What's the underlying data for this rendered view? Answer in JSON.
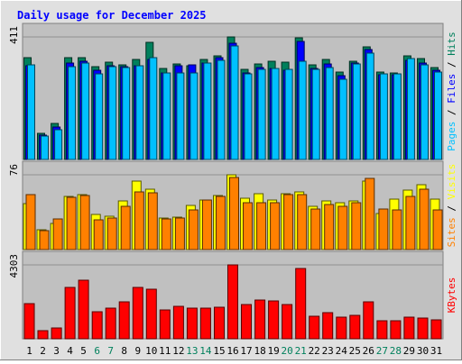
{
  "chart_data": {
    "type": "bar",
    "title": "Daily usage for December 2025",
    "days": [
      "1",
      "2",
      "3",
      "4",
      "5",
      "6",
      "7",
      "8",
      "9",
      "10",
      "11",
      "12",
      "13",
      "14",
      "15",
      "16",
      "17",
      "18",
      "19",
      "20",
      "21",
      "22",
      "23",
      "24",
      "25",
      "26",
      "27",
      "28",
      "29",
      "30",
      "31"
    ],
    "weekend_days": [
      "6",
      "7",
      "13",
      "14",
      "20",
      "21",
      "27",
      "28"
    ],
    "panels": [
      {
        "id": "hits-files-pages",
        "scale_max_label": "411",
        "ymax": 411,
        "label_parts": [
          "Pages",
          "Files",
          "Hits"
        ],
        "series": [
          {
            "name": "Hits",
            "values": [
              341,
              87,
              121,
              342,
              341,
              310,
              325,
              318,
              334,
              393,
              305,
              320,
              314,
              335,
              349,
              411,
              302,
              320,
              330,
              325,
              409,
              316,
              335,
              292,
              329,
              379,
              294,
              290,
              348,
              338,
              307
            ]
          },
          {
            "name": "Files",
            "values": [
              315,
              83,
              108,
              324,
              330,
              300,
              315,
              312,
              315,
              334,
              290,
              315,
              318,
              322,
              342,
              390,
              290,
              307,
              305,
              300,
              397,
              305,
              320,
              282,
              322,
              368,
              284,
              285,
              331,
              322,
              298
            ]
          },
          {
            "name": "Pages",
            "values": [
              318,
              79,
              99,
              311,
              324,
              288,
              311,
              309,
              313,
              341,
              289,
              290,
              291,
              324,
              333,
              380,
              288,
              303,
              306,
              301,
              329,
              302,
              307,
              270,
              320,
              358,
              286,
              287,
              339,
              317,
              294
            ]
          }
        ]
      },
      {
        "id": "visits-sites",
        "scale_max_label": "76",
        "ymax": 76,
        "label_parts": [
          "Sites",
          "Visits"
        ],
        "series": [
          {
            "name": "Visits",
            "values": [
              47,
              20,
              27,
              54,
              56,
              36,
              34,
              49,
              70,
              61,
              32,
              33,
              45,
              50,
              55,
              76,
              52,
              57,
              50,
              57,
              59,
              44,
              49,
              48,
              49,
              70,
              37,
              51,
              60,
              66,
              51
            ]
          },
          {
            "name": "Sites",
            "values": [
              56,
              19,
              31,
              53,
              55,
              30,
              32,
              44,
              59,
              58,
              31,
              32,
              40,
              50,
              54,
              73,
              48,
              48,
              48,
              56,
              56,
              41,
              46,
              44,
              48,
              72,
              41,
              40,
              54,
              61,
              40
            ]
          }
        ]
      },
      {
        "id": "kbytes",
        "scale_max_label": "4303",
        "ymax": 4303,
        "label_parts": [
          "KBytes"
        ],
        "series": [
          {
            "name": "KBytes",
            "values": [
              2052,
              453,
              648,
              2981,
              3414,
              1581,
              1790,
              2155,
              2974,
              2884,
              1657,
              1876,
              1759,
              1759,
              1856,
              4303,
              1996,
              2255,
              2195,
              1993,
              4113,
              1310,
              1501,
              1278,
              1382,
              2176,
              1056,
              1052,
              1285,
              1199,
              1104
            ]
          }
        ]
      }
    ],
    "colors": {
      "Hits": "#00805c",
      "Files": "#0000ff",
      "Pages": "#00c0ff",
      "Visits": "#ffff00",
      "Sites": "#ff8000",
      "KBytes": "#ff0000",
      "title": "#0000ff",
      "weekday": "#000000",
      "weekend": "#00805c",
      "panel_bg": "#c0c0c0",
      "frame_bg": "#e0e0e0"
    }
  }
}
